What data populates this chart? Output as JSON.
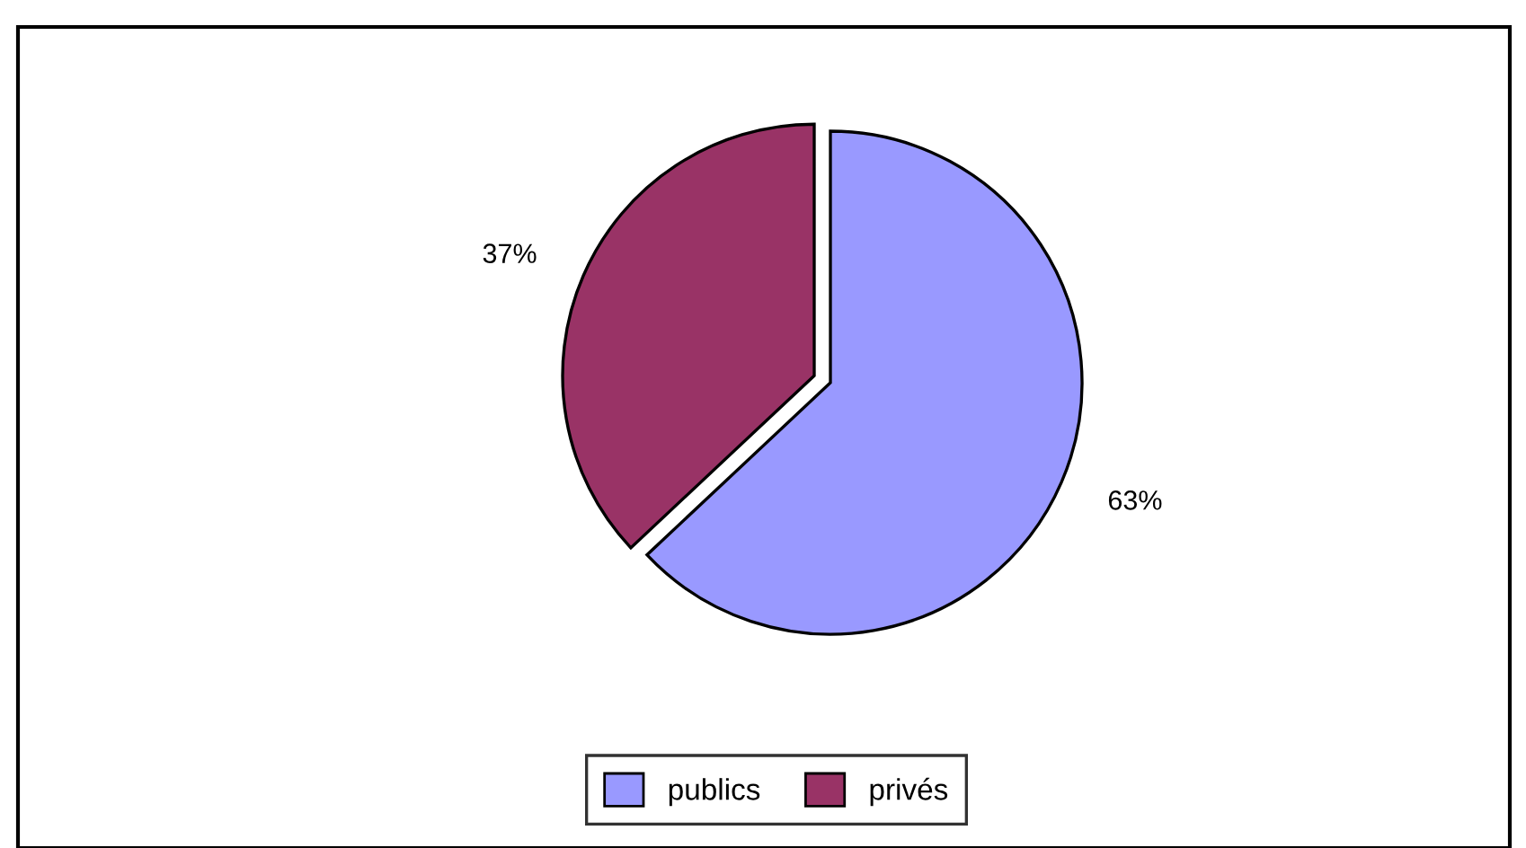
{
  "chart_data": {
    "type": "pie",
    "categories": [
      "publics",
      "privés"
    ],
    "values": [
      63,
      37
    ],
    "colors": [
      "#9999ff",
      "#993366"
    ],
    "value_labels": [
      "63%",
      "37%"
    ],
    "legend": "bottom"
  }
}
